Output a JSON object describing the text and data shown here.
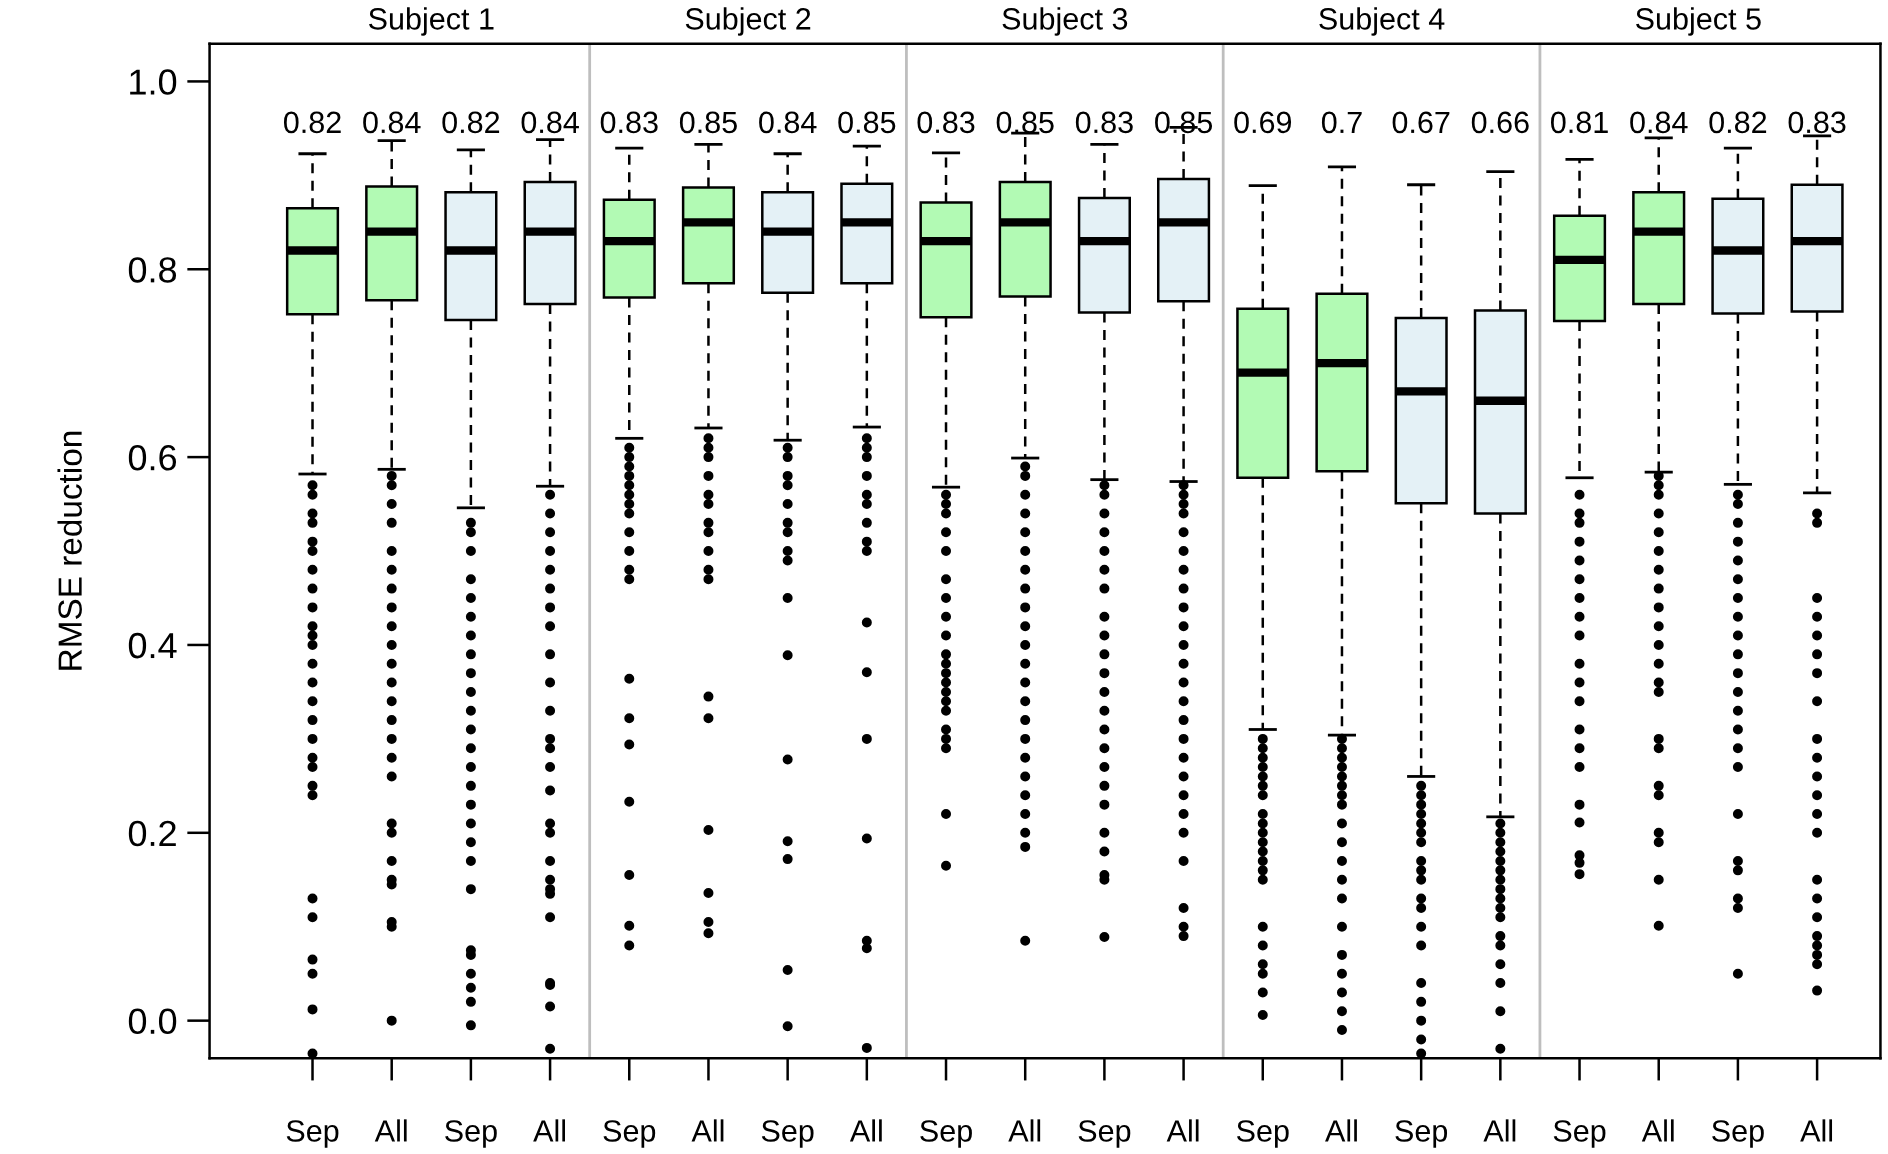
{
  "chart_data": {
    "type": "box",
    "ylabel": "RMSE reduction",
    "annotations": [
      "Subject 1",
      "Subject 2",
      "Subject 3",
      "Subject 4",
      "Subject 5"
    ],
    "categories": [
      "Sep",
      "All",
      "Sep",
      "All",
      "Sep",
      "All",
      "Sep",
      "All",
      "Sep",
      "All",
      "Sep",
      "All",
      "Sep",
      "All",
      "Sep",
      "All",
      "Sep",
      "All",
      "Sep",
      "All"
    ],
    "colors": [
      "#b2fab4",
      "#b2fab4",
      "#e4f1f6",
      "#e4f1f6",
      "#b2fab4",
      "#b2fab4",
      "#e4f1f6",
      "#e4f1f6",
      "#b2fab4",
      "#b2fab4",
      "#e4f1f6",
      "#e4f1f6",
      "#b2fab4",
      "#b2fab4",
      "#e4f1f6",
      "#e4f1f6",
      "#b2fab4",
      "#b2fab4",
      "#e4f1f6",
      "#e4f1f6"
    ],
    "ylim": [
      -0.04,
      1.04
    ],
    "yticks": [
      {
        "value": 0,
        "label": "0.0"
      },
      0.2,
      0.4,
      0.6,
      0.8,
      {
        "value": 1,
        "label": "1.0"
      }
    ],
    "grid": false,
    "value_labels": [
      "0.82",
      "0.84",
      "0.82",
      "0.84",
      "0.83",
      "0.85",
      "0.84",
      "0.85",
      "0.83",
      "0.85",
      "0.83",
      "0.85",
      "0.69",
      "0.7",
      "0.67",
      "0.66",
      "0.81",
      "0.84",
      "0.82",
      "0.83"
    ],
    "boxes": [
      {
        "low": 0.582,
        "q1": 0.752,
        "median": 0.82,
        "q3": 0.865,
        "high": 0.923,
        "outliers": [
          0.57,
          0.56,
          0.54,
          0.53,
          0.51,
          0.5,
          0.48,
          0.46,
          0.44,
          0.42,
          0.41,
          0.4,
          0.38,
          0.36,
          0.34,
          0.32,
          0.3,
          0.28,
          0.27,
          0.25,
          0.24,
          0.13,
          0.11,
          0.065,
          0.05,
          0.012,
          -0.035
        ]
      },
      {
        "low": 0.587,
        "q1": 0.767,
        "median": 0.84,
        "q3": 0.888,
        "high": 0.937,
        "outliers": [
          0.58,
          0.57,
          0.55,
          0.53,
          0.5,
          0.48,
          0.46,
          0.44,
          0.42,
          0.4,
          0.38,
          0.36,
          0.34,
          0.32,
          0.3,
          0.28,
          0.26,
          0.21,
          0.2,
          0.17,
          0.15,
          0.145,
          0.105,
          0.1,
          0.0
        ]
      },
      {
        "low": 0.546,
        "q1": 0.746,
        "median": 0.82,
        "q3": 0.882,
        "high": 0.927,
        "outliers": [
          0.53,
          0.52,
          0.5,
          0.47,
          0.45,
          0.43,
          0.41,
          0.39,
          0.37,
          0.35,
          0.33,
          0.31,
          0.29,
          0.27,
          0.25,
          0.23,
          0.21,
          0.19,
          0.17,
          0.14,
          0.075,
          0.07,
          0.05,
          0.035,
          0.02,
          -0.005
        ]
      },
      {
        "low": 0.569,
        "q1": 0.763,
        "median": 0.84,
        "q3": 0.893,
        "high": 0.938,
        "outliers": [
          0.56,
          0.54,
          0.52,
          0.5,
          0.48,
          0.46,
          0.44,
          0.42,
          0.39,
          0.36,
          0.33,
          0.3,
          0.29,
          0.27,
          0.245,
          0.21,
          0.2,
          0.17,
          0.15,
          0.14,
          0.135,
          0.11,
          0.04,
          0.038,
          0.015,
          -0.03
        ]
      },
      {
        "low": 0.62,
        "q1": 0.77,
        "median": 0.83,
        "q3": 0.874,
        "high": 0.929,
        "outliers": [
          0.61,
          0.6,
          0.59,
          0.58,
          0.57,
          0.56,
          0.55,
          0.54,
          0.52,
          0.5,
          0.48,
          0.47,
          0.364,
          0.322,
          0.294,
          0.233,
          0.155,
          0.101,
          0.08
        ]
      },
      {
        "low": 0.631,
        "q1": 0.785,
        "median": 0.85,
        "q3": 0.887,
        "high": 0.933,
        "outliers": [
          0.62,
          0.61,
          0.6,
          0.58,
          0.56,
          0.55,
          0.53,
          0.52,
          0.5,
          0.48,
          0.47,
          0.345,
          0.322,
          0.203,
          0.136,
          0.105,
          0.093
        ]
      },
      {
        "low": 0.618,
        "q1": 0.775,
        "median": 0.84,
        "q3": 0.882,
        "high": 0.923,
        "outliers": [
          0.61,
          0.6,
          0.58,
          0.57,
          0.55,
          0.53,
          0.52,
          0.5,
          0.49,
          0.45,
          0.389,
          0.278,
          0.191,
          0.172,
          0.054,
          -0.006
        ]
      },
      {
        "low": 0.632,
        "q1": 0.785,
        "median": 0.85,
        "q3": 0.891,
        "high": 0.931,
        "outliers": [
          0.62,
          0.61,
          0.6,
          0.58,
          0.56,
          0.55,
          0.53,
          0.51,
          0.5,
          0.424,
          0.371,
          0.3,
          0.194,
          0.085,
          0.077,
          -0.029
        ]
      },
      {
        "low": 0.568,
        "q1": 0.749,
        "median": 0.83,
        "q3": 0.871,
        "high": 0.924,
        "outliers": [
          0.56,
          0.55,
          0.54,
          0.52,
          0.5,
          0.47,
          0.45,
          0.43,
          0.41,
          0.39,
          0.38,
          0.37,
          0.36,
          0.35,
          0.34,
          0.33,
          0.31,
          0.3,
          0.29,
          0.22,
          0.165
        ]
      },
      {
        "low": 0.599,
        "q1": 0.771,
        "median": 0.85,
        "q3": 0.893,
        "high": 0.945,
        "outliers": [
          0.59,
          0.58,
          0.56,
          0.54,
          0.52,
          0.5,
          0.48,
          0.46,
          0.44,
          0.42,
          0.4,
          0.38,
          0.36,
          0.34,
          0.32,
          0.3,
          0.28,
          0.26,
          0.24,
          0.22,
          0.2,
          0.185,
          0.085
        ]
      },
      {
        "low": 0.576,
        "q1": 0.754,
        "median": 0.83,
        "q3": 0.876,
        "high": 0.933,
        "outliers": [
          0.57,
          0.56,
          0.54,
          0.52,
          0.5,
          0.48,
          0.46,
          0.43,
          0.41,
          0.39,
          0.37,
          0.35,
          0.33,
          0.31,
          0.29,
          0.27,
          0.25,
          0.23,
          0.2,
          0.18,
          0.155,
          0.15,
          0.089
        ]
      },
      {
        "low": 0.574,
        "q1": 0.766,
        "median": 0.85,
        "q3": 0.896,
        "high": 0.951,
        "outliers": [
          0.57,
          0.56,
          0.55,
          0.54,
          0.52,
          0.5,
          0.48,
          0.46,
          0.44,
          0.42,
          0.4,
          0.38,
          0.36,
          0.34,
          0.32,
          0.3,
          0.28,
          0.26,
          0.24,
          0.22,
          0.2,
          0.17,
          0.12,
          0.1,
          0.09
        ]
      },
      {
        "low": 0.31,
        "q1": 0.578,
        "median": 0.69,
        "q3": 0.758,
        "high": 0.889,
        "outliers": [
          0.3,
          0.29,
          0.28,
          0.27,
          0.26,
          0.25,
          0.24,
          0.22,
          0.21,
          0.2,
          0.19,
          0.18,
          0.17,
          0.16,
          0.15,
          0.1,
          0.08,
          0.06,
          0.05,
          0.03,
          0.006
        ]
      },
      {
        "low": 0.304,
        "q1": 0.585,
        "median": 0.7,
        "q3": 0.774,
        "high": 0.909,
        "outliers": [
          0.3,
          0.29,
          0.28,
          0.27,
          0.26,
          0.25,
          0.24,
          0.23,
          0.21,
          0.19,
          0.17,
          0.15,
          0.13,
          0.1,
          0.07,
          0.05,
          0.03,
          0.01,
          -0.01
        ]
      },
      {
        "low": 0.26,
        "q1": 0.551,
        "median": 0.67,
        "q3": 0.748,
        "high": 0.89,
        "outliers": [
          0.25,
          0.24,
          0.23,
          0.22,
          0.21,
          0.2,
          0.19,
          0.17,
          0.16,
          0.15,
          0.13,
          0.12,
          0.1,
          0.08,
          0.04,
          0.02,
          0.0,
          -0.02,
          -0.035
        ]
      },
      {
        "low": 0.217,
        "q1": 0.54,
        "median": 0.66,
        "q3": 0.756,
        "high": 0.904,
        "outliers": [
          0.21,
          0.2,
          0.19,
          0.18,
          0.17,
          0.16,
          0.15,
          0.14,
          0.13,
          0.12,
          0.11,
          0.09,
          0.08,
          0.06,
          0.04,
          0.01,
          -0.03
        ]
      },
      {
        "low": 0.578,
        "q1": 0.745,
        "median": 0.81,
        "q3": 0.857,
        "high": 0.917,
        "outliers": [
          0.56,
          0.54,
          0.53,
          0.51,
          0.49,
          0.47,
          0.45,
          0.43,
          0.41,
          0.38,
          0.36,
          0.34,
          0.31,
          0.29,
          0.27,
          0.23,
          0.211,
          0.176,
          0.168,
          0.156
        ]
      },
      {
        "low": 0.584,
        "q1": 0.763,
        "median": 0.84,
        "q3": 0.882,
        "high": 0.94,
        "outliers": [
          0.58,
          0.57,
          0.56,
          0.54,
          0.52,
          0.5,
          0.48,
          0.46,
          0.44,
          0.42,
          0.4,
          0.38,
          0.36,
          0.35,
          0.3,
          0.29,
          0.25,
          0.24,
          0.2,
          0.19,
          0.15,
          0.101
        ]
      },
      {
        "low": 0.571,
        "q1": 0.753,
        "median": 0.82,
        "q3": 0.875,
        "high": 0.929,
        "outliers": [
          0.56,
          0.55,
          0.53,
          0.51,
          0.49,
          0.47,
          0.45,
          0.43,
          0.41,
          0.39,
          0.37,
          0.35,
          0.33,
          0.31,
          0.29,
          0.27,
          0.22,
          0.17,
          0.16,
          0.13,
          0.12,
          0.05
        ]
      },
      {
        "low": 0.562,
        "q1": 0.755,
        "median": 0.83,
        "q3": 0.89,
        "high": 0.942,
        "outliers": [
          0.54,
          0.53,
          0.45,
          0.43,
          0.41,
          0.39,
          0.37,
          0.34,
          0.3,
          0.28,
          0.26,
          0.24,
          0.22,
          0.2,
          0.15,
          0.13,
          0.11,
          0.09,
          0.08,
          0.07,
          0.06,
          0.032
        ]
      }
    ]
  }
}
